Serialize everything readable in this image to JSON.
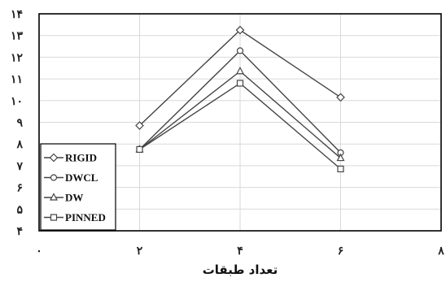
{
  "chart_data": {
    "type": "line",
    "xlabel": "تعداد طبقات",
    "ylabel": "",
    "xlim": [
      0,
      8
    ],
    "ylim": [
      4,
      14
    ],
    "x_ticks": [
      0,
      2,
      4,
      6,
      8
    ],
    "y_ticks": [
      4,
      5,
      6,
      7,
      8,
      9,
      10,
      11,
      12,
      13,
      14
    ],
    "x_tick_labels": [
      "۰",
      "۲",
      "۴",
      "۶",
      "۸"
    ],
    "y_tick_labels": [
      "۴",
      "۵",
      "۶",
      "۷",
      "۸",
      "۹",
      "۱۰",
      "۱۱",
      "۱۲",
      "۱۳",
      "۱۴"
    ],
    "grid": true,
    "legend_position": "bottom-left",
    "x": [
      2,
      4,
      6
    ],
    "series": [
      {
        "name": "RIGID",
        "marker": "diamond",
        "values": [
          8.85,
          13.25,
          10.15
        ]
      },
      {
        "name": "DWCL",
        "marker": "circle",
        "values": [
          7.75,
          12.3,
          7.6
        ]
      },
      {
        "name": "DW",
        "marker": "triangle",
        "values": [
          7.75,
          11.35,
          7.35
        ]
      },
      {
        "name": "PINNED",
        "marker": "square",
        "values": [
          7.75,
          10.8,
          6.85
        ]
      }
    ]
  },
  "colors": {
    "series_stroke": "#444444",
    "grid": "#d9d9d9",
    "border": "#000000",
    "text": "#222222"
  }
}
